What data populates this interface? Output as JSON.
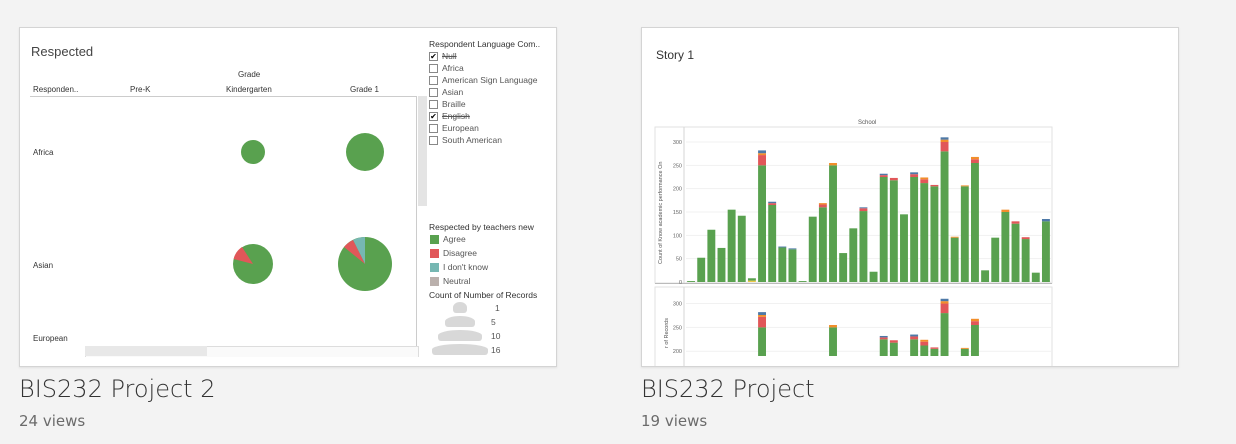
{
  "cards": [
    {
      "title": "BIS232 Project 2",
      "views": "24 views",
      "preview": {
        "sheet_title": "Respected",
        "column_group_header": "Grade",
        "row_header": "Responden..",
        "columns": [
          "Pre-K",
          "Kindergarten",
          "Grade 1"
        ],
        "rows": [
          "Africa",
          "Asian",
          "European"
        ],
        "filter": {
          "title": "Respondent Language Com..",
          "items": [
            {
              "label": "Null",
              "checked": true,
              "strike": true
            },
            {
              "label": "Africa",
              "checked": false,
              "strike": false
            },
            {
              "label": "American Sign Language",
              "checked": false,
              "strike": false
            },
            {
              "label": "Asian",
              "checked": false,
              "strike": false
            },
            {
              "label": "Braille",
              "checked": false,
              "strike": false
            },
            {
              "label": "English",
              "checked": true,
              "strike": true
            },
            {
              "label": "European",
              "checked": false,
              "strike": false
            },
            {
              "label": "South American",
              "checked": false,
              "strike": false
            }
          ]
        },
        "color_legend": {
          "title": "Respected by teachers new",
          "items": [
            {
              "label": "Agree",
              "color": "#59a14f"
            },
            {
              "label": "Disagree",
              "color": "#e15759"
            },
            {
              "label": "I don't know",
              "color": "#76b7b2"
            },
            {
              "label": "Neutral",
              "color": "#bab0ac"
            }
          ]
        },
        "size_legend": {
          "title": "Count of Number of Records",
          "items": [
            "1",
            "5",
            "10",
            "16"
          ]
        }
      }
    },
    {
      "title": "BIS232 Project",
      "views": "19 views",
      "preview": {
        "story_title": "Story 1",
        "chart_header": "School",
        "y_label_top": "Count of Know academic performance On",
        "y_label_bottom": "r of Records",
        "top_ticks": [
          "300",
          "250",
          "200",
          "150",
          "100",
          "50",
          "0"
        ],
        "bottom_ticks": [
          "300",
          "250",
          "200"
        ]
      }
    }
  ],
  "chart_data": {
    "type": "bar",
    "stacked": true,
    "title": "School",
    "ylabel": "Count of Know academic performance On",
    "ylim": [
      0,
      320
    ],
    "series_colors": {
      "green": "#59a14f",
      "red": "#e15759",
      "orange": "#f28e2b",
      "blue": "#4e79a7",
      "purple": "#b07aa1",
      "yellow": "#edc948"
    },
    "bars": [
      {
        "g": 2
      },
      {
        "g": 52
      },
      {
        "g": 112
      },
      {
        "g": 73
      },
      {
        "g": 155
      },
      {
        "g": 142
      },
      {
        "g": 5,
        "y": 3
      },
      {
        "g": 250,
        "r": 22,
        "b": 6,
        "o": 4
      },
      {
        "g": 165,
        "r": 4,
        "b": 3
      },
      {
        "g": 74,
        "b": 2
      },
      {
        "g": 70,
        "b": 2
      },
      {
        "g": 2
      },
      {
        "g": 140
      },
      {
        "g": 160,
        "r": 6,
        "o": 3
      },
      {
        "g": 250,
        "o": 5
      },
      {
        "g": 62
      },
      {
        "g": 115
      },
      {
        "g": 152,
        "r": 6,
        "b": 2
      },
      {
        "g": 22
      },
      {
        "g": 225,
        "r": 4,
        "b": 3
      },
      {
        "g": 218,
        "r": 5
      },
      {
        "g": 145
      },
      {
        "g": 225,
        "r": 6,
        "b": 4
      },
      {
        "g": 212,
        "r": 8,
        "o": 4
      },
      {
        "g": 205,
        "r": 3
      },
      {
        "g": 280,
        "r": 20,
        "o": 5,
        "b": 5
      },
      {
        "g": 95,
        "o": 2
      },
      {
        "g": 205,
        "o": 2
      },
      {
        "g": 255,
        "r": 8,
        "o": 5
      },
      {
        "g": 25
      },
      {
        "g": 95
      },
      {
        "g": 150,
        "o": 5
      },
      {
        "g": 125,
        "r": 5
      },
      {
        "g": 92,
        "r": 4
      },
      {
        "g": 20
      },
      {
        "g": 130,
        "b": 5
      }
    ]
  }
}
